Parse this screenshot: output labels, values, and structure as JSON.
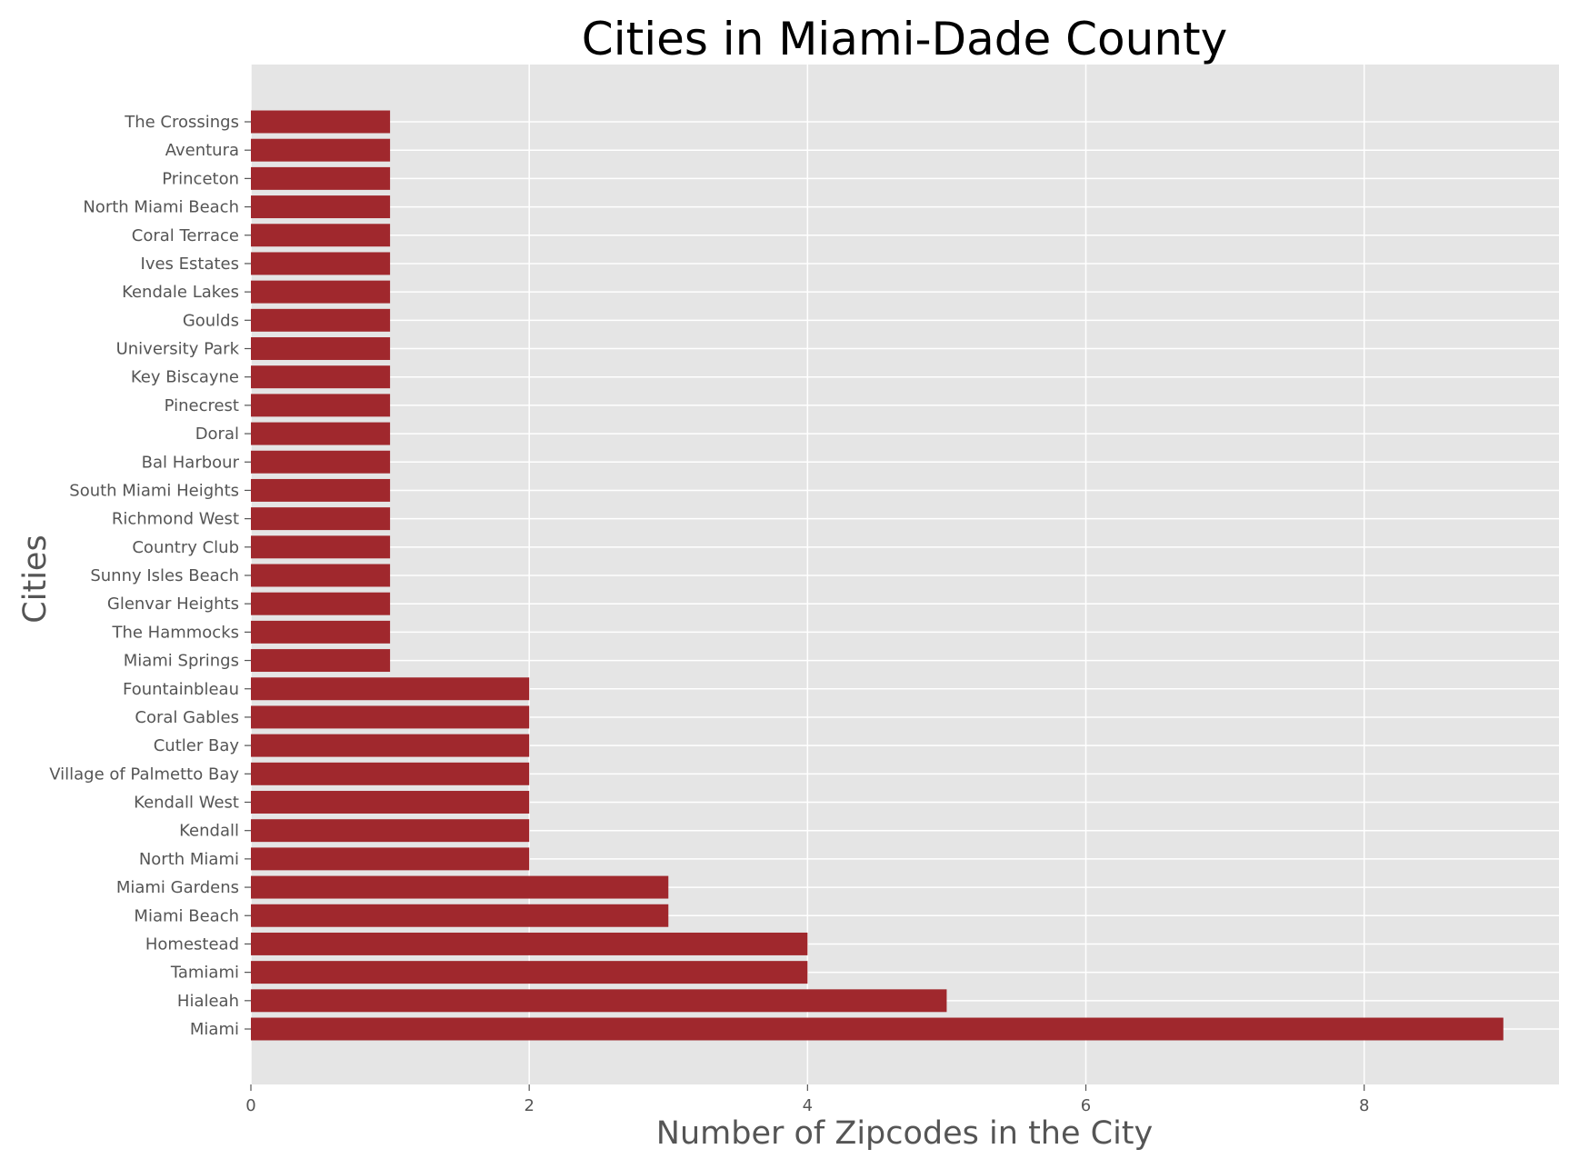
{
  "chart_data": {
    "type": "bar",
    "orientation": "horizontal",
    "title": "Cities in Miami-Dade County",
    "xlabel": "Number of Zipcodes in the City",
    "ylabel": "Cities",
    "xlim": [
      0,
      9.4
    ],
    "xticks": [
      0,
      2,
      4,
      6,
      8
    ],
    "grid": true,
    "legend": false,
    "bar_color": "#a0282d",
    "plot_background": "#e5e5e5",
    "grid_color": "#ffffff",
    "categories": [
      "Miami",
      "Hialeah",
      "Tamiami",
      "Homestead",
      "Miami Beach",
      "Miami Gardens",
      "North Miami",
      "Kendall",
      "Kendall West",
      "Village of Palmetto Bay",
      "Cutler Bay",
      "Coral Gables",
      "Fountainbleau",
      "Miami Springs",
      "The Hammocks",
      "Glenvar Heights",
      "Sunny Isles Beach",
      "Country Club",
      "Richmond West",
      "South Miami Heights",
      "Bal Harbour",
      "Doral",
      "Pinecrest",
      "Key Biscayne",
      "University Park",
      "Goulds",
      "Kendale Lakes",
      "Ives Estates",
      "Coral Terrace",
      "North Miami Beach",
      "Princeton",
      "Aventura",
      "The Crossings"
    ],
    "values": [
      9,
      5,
      4,
      4,
      3,
      3,
      2,
      2,
      2,
      2,
      2,
      2,
      2,
      1,
      1,
      1,
      1,
      1,
      1,
      1,
      1,
      1,
      1,
      1,
      1,
      1,
      1,
      1,
      1,
      1,
      1,
      1,
      1
    ]
  }
}
